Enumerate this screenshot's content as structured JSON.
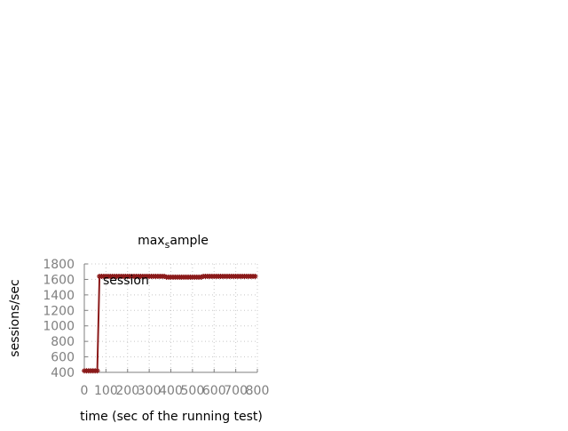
{
  "chart_data": {
    "type": "line",
    "title_main": "max",
    "title_sub": "s",
    "title_tail": "ample",
    "xlabel": "time (sec of the running test)",
    "ylabel": "sessions/sec",
    "xlim": [
      0,
      800
    ],
    "ylim": [
      400,
      1800
    ],
    "x_ticks": [
      "0",
      "100",
      "200",
      "300",
      "400",
      "500",
      "600",
      "700",
      "800"
    ],
    "y_ticks": [
      "400",
      "600",
      "800",
      "1000",
      "1200",
      "1400",
      "1600",
      "1800"
    ],
    "grid": true,
    "legend_position": "top-left",
    "series": [
      {
        "name": "session",
        "color": "#8b1a1a",
        "x": [
          0,
          10,
          20,
          30,
          40,
          50,
          60,
          70,
          80,
          90,
          100,
          110,
          120,
          130,
          140,
          150,
          160,
          170,
          180,
          190,
          200,
          210,
          220,
          230,
          240,
          250,
          260,
          270,
          280,
          290,
          300,
          310,
          320,
          330,
          340,
          350,
          360,
          370,
          380,
          390,
          400,
          410,
          420,
          430,
          440,
          450,
          460,
          470,
          480,
          490,
          500,
          510,
          520,
          530,
          540,
          550,
          560,
          570,
          580,
          590,
          600,
          610,
          620,
          630,
          640,
          650,
          660,
          670,
          680,
          690,
          700,
          710,
          720,
          730,
          740,
          750,
          760,
          770,
          780,
          790
        ],
        "y": [
          420,
          420,
          420,
          420,
          420,
          420,
          420,
          1640,
          1640,
          1640,
          1640,
          1640,
          1640,
          1640,
          1640,
          1640,
          1640,
          1640,
          1640,
          1640,
          1640,
          1640,
          1640,
          1640,
          1640,
          1640,
          1640,
          1640,
          1640,
          1640,
          1640,
          1640,
          1640,
          1640,
          1640,
          1640,
          1640,
          1640,
          1630,
          1630,
          1630,
          1630,
          1630,
          1630,
          1630,
          1630,
          1630,
          1630,
          1630,
          1630,
          1630,
          1630,
          1630,
          1630,
          1630,
          1640,
          1640,
          1640,
          1640,
          1640,
          1640,
          1640,
          1640,
          1640,
          1640,
          1640,
          1640,
          1640,
          1640,
          1640,
          1640,
          1640,
          1640,
          1640,
          1640,
          1640,
          1640,
          1640,
          1640,
          1640
        ]
      }
    ]
  }
}
